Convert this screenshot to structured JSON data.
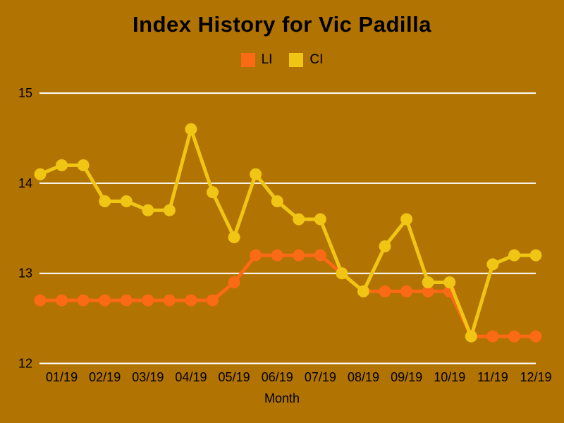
{
  "page": {
    "title": "Index History for Vic Padilla"
  },
  "colors": {
    "background": "#B17301",
    "gridline": "#FFFFFF",
    "text": "#000000",
    "li_orange": "#FB6A14",
    "ci_gold": "#F0C513"
  },
  "legend": {
    "items": [
      {
        "label": "LI",
        "color": "#FB6A14"
      },
      {
        "label": "CI",
        "color": "#F0C513"
      }
    ]
  },
  "chart_data": {
    "type": "line",
    "title": "Index History for Vic Padilla",
    "xlabel": "Month",
    "ylabel": "",
    "x": [
      0.5,
      1,
      1.5,
      2,
      2.5,
      3,
      3.5,
      4,
      4.5,
      5,
      5.5,
      6,
      6.5,
      7,
      7.5,
      8,
      8.5,
      9,
      9.5,
      10,
      10.5,
      11,
      11.5,
      12
    ],
    "x_tick_positions": [
      1,
      2,
      3,
      4,
      5,
      6,
      7,
      8,
      9,
      10,
      11,
      12
    ],
    "x_tick_labels": [
      "01/19",
      "02/19",
      "03/19",
      "04/19",
      "05/19",
      "06/19",
      "07/19",
      "08/19",
      "09/19",
      "10/19",
      "11/19",
      "12/19"
    ],
    "y_ticks": [
      12,
      13,
      14,
      15
    ],
    "ylim": [
      12,
      15
    ],
    "grid": "horizontal white lines at integer ticks",
    "legend_position": "top-center",
    "marker": "filled circle",
    "series": [
      {
        "name": "LI",
        "color": "#FB6A14",
        "values": [
          12.7,
          12.7,
          12.7,
          12.7,
          12.7,
          12.7,
          12.7,
          12.7,
          12.7,
          12.9,
          13.2,
          13.2,
          13.2,
          13.2,
          13.0,
          12.8,
          12.8,
          12.8,
          12.8,
          12.8,
          12.3,
          12.3,
          12.3,
          12.3
        ]
      },
      {
        "name": "CI",
        "color": "#F0C513",
        "values": [
          14.1,
          14.2,
          14.2,
          13.8,
          13.8,
          13.7,
          13.7,
          14.6,
          13.9,
          13.4,
          14.1,
          13.8,
          13.6,
          13.6,
          13.0,
          12.8,
          13.3,
          13.6,
          12.9,
          12.9,
          12.3,
          13.1,
          13.2,
          13.2
        ]
      }
    ]
  }
}
